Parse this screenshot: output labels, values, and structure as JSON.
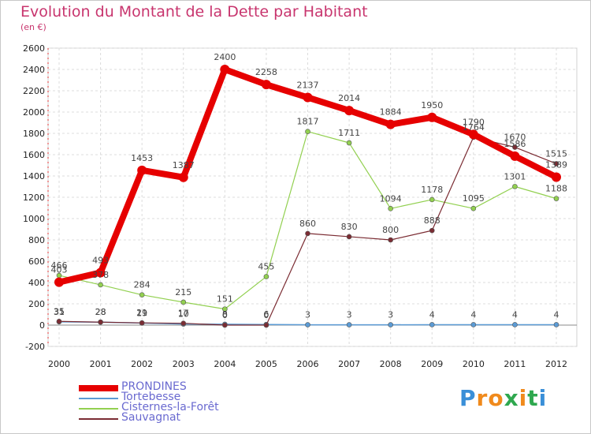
{
  "chart_data": {
    "type": "line",
    "title": "Evolution du Montant de la Dette par Habitant",
    "subtitle": "(en €)",
    "x": [
      "2000",
      "2001",
      "2002",
      "2003",
      "2004",
      "2005",
      "2006",
      "2007",
      "2008",
      "2009",
      "2010",
      "2011",
      "2012"
    ],
    "ylim": [
      -200,
      2600
    ],
    "yticks": [
      -200,
      0,
      200,
      400,
      600,
      800,
      1000,
      1200,
      1400,
      1600,
      1800,
      2000,
      2200,
      2400,
      2600
    ],
    "grid": true,
    "legend": "bottom-left",
    "series": [
      {
        "name": "PRONDINES",
        "color": "#e60000",
        "width": 8,
        "marker": 6,
        "values": [
          403,
          493,
          1453,
          1387,
          2400,
          2258,
          2137,
          2014,
          1884,
          1950,
          1790,
          1586,
          1389
        ]
      },
      {
        "name": "Tortebesse",
        "color": "#5b9bd5",
        "width": 1.5,
        "marker": 3,
        "values": [
          31,
          28,
          19,
          10,
          8,
          6,
          3,
          3,
          3,
          4,
          4,
          4,
          4
        ]
      },
      {
        "name": "Cisternes-la-Forêt",
        "color": "#92d050",
        "width": 1.2,
        "marker": 3,
        "values": [
          466,
          378,
          284,
          215,
          151,
          455,
          1817,
          1711,
          1094,
          1178,
          1095,
          1301,
          1188
        ]
      },
      {
        "name": "Sauvagnat",
        "color": "#7b2c33",
        "width": 1.2,
        "marker": 3,
        "values": [
          35,
          28,
          21,
          17,
          0,
          0,
          860,
          830,
          800,
          888,
          1764,
          1670,
          1515
        ]
      }
    ]
  },
  "logo": {
    "letters": [
      "P",
      "r",
      "o",
      "x",
      "i",
      "t",
      "i"
    ],
    "colors": [
      "#3a8fd8",
      "#f08a1c",
      "#f08a1c",
      "#2fa84f",
      "#f08a1c",
      "#2fa84f",
      "#3a8fd8"
    ]
  }
}
